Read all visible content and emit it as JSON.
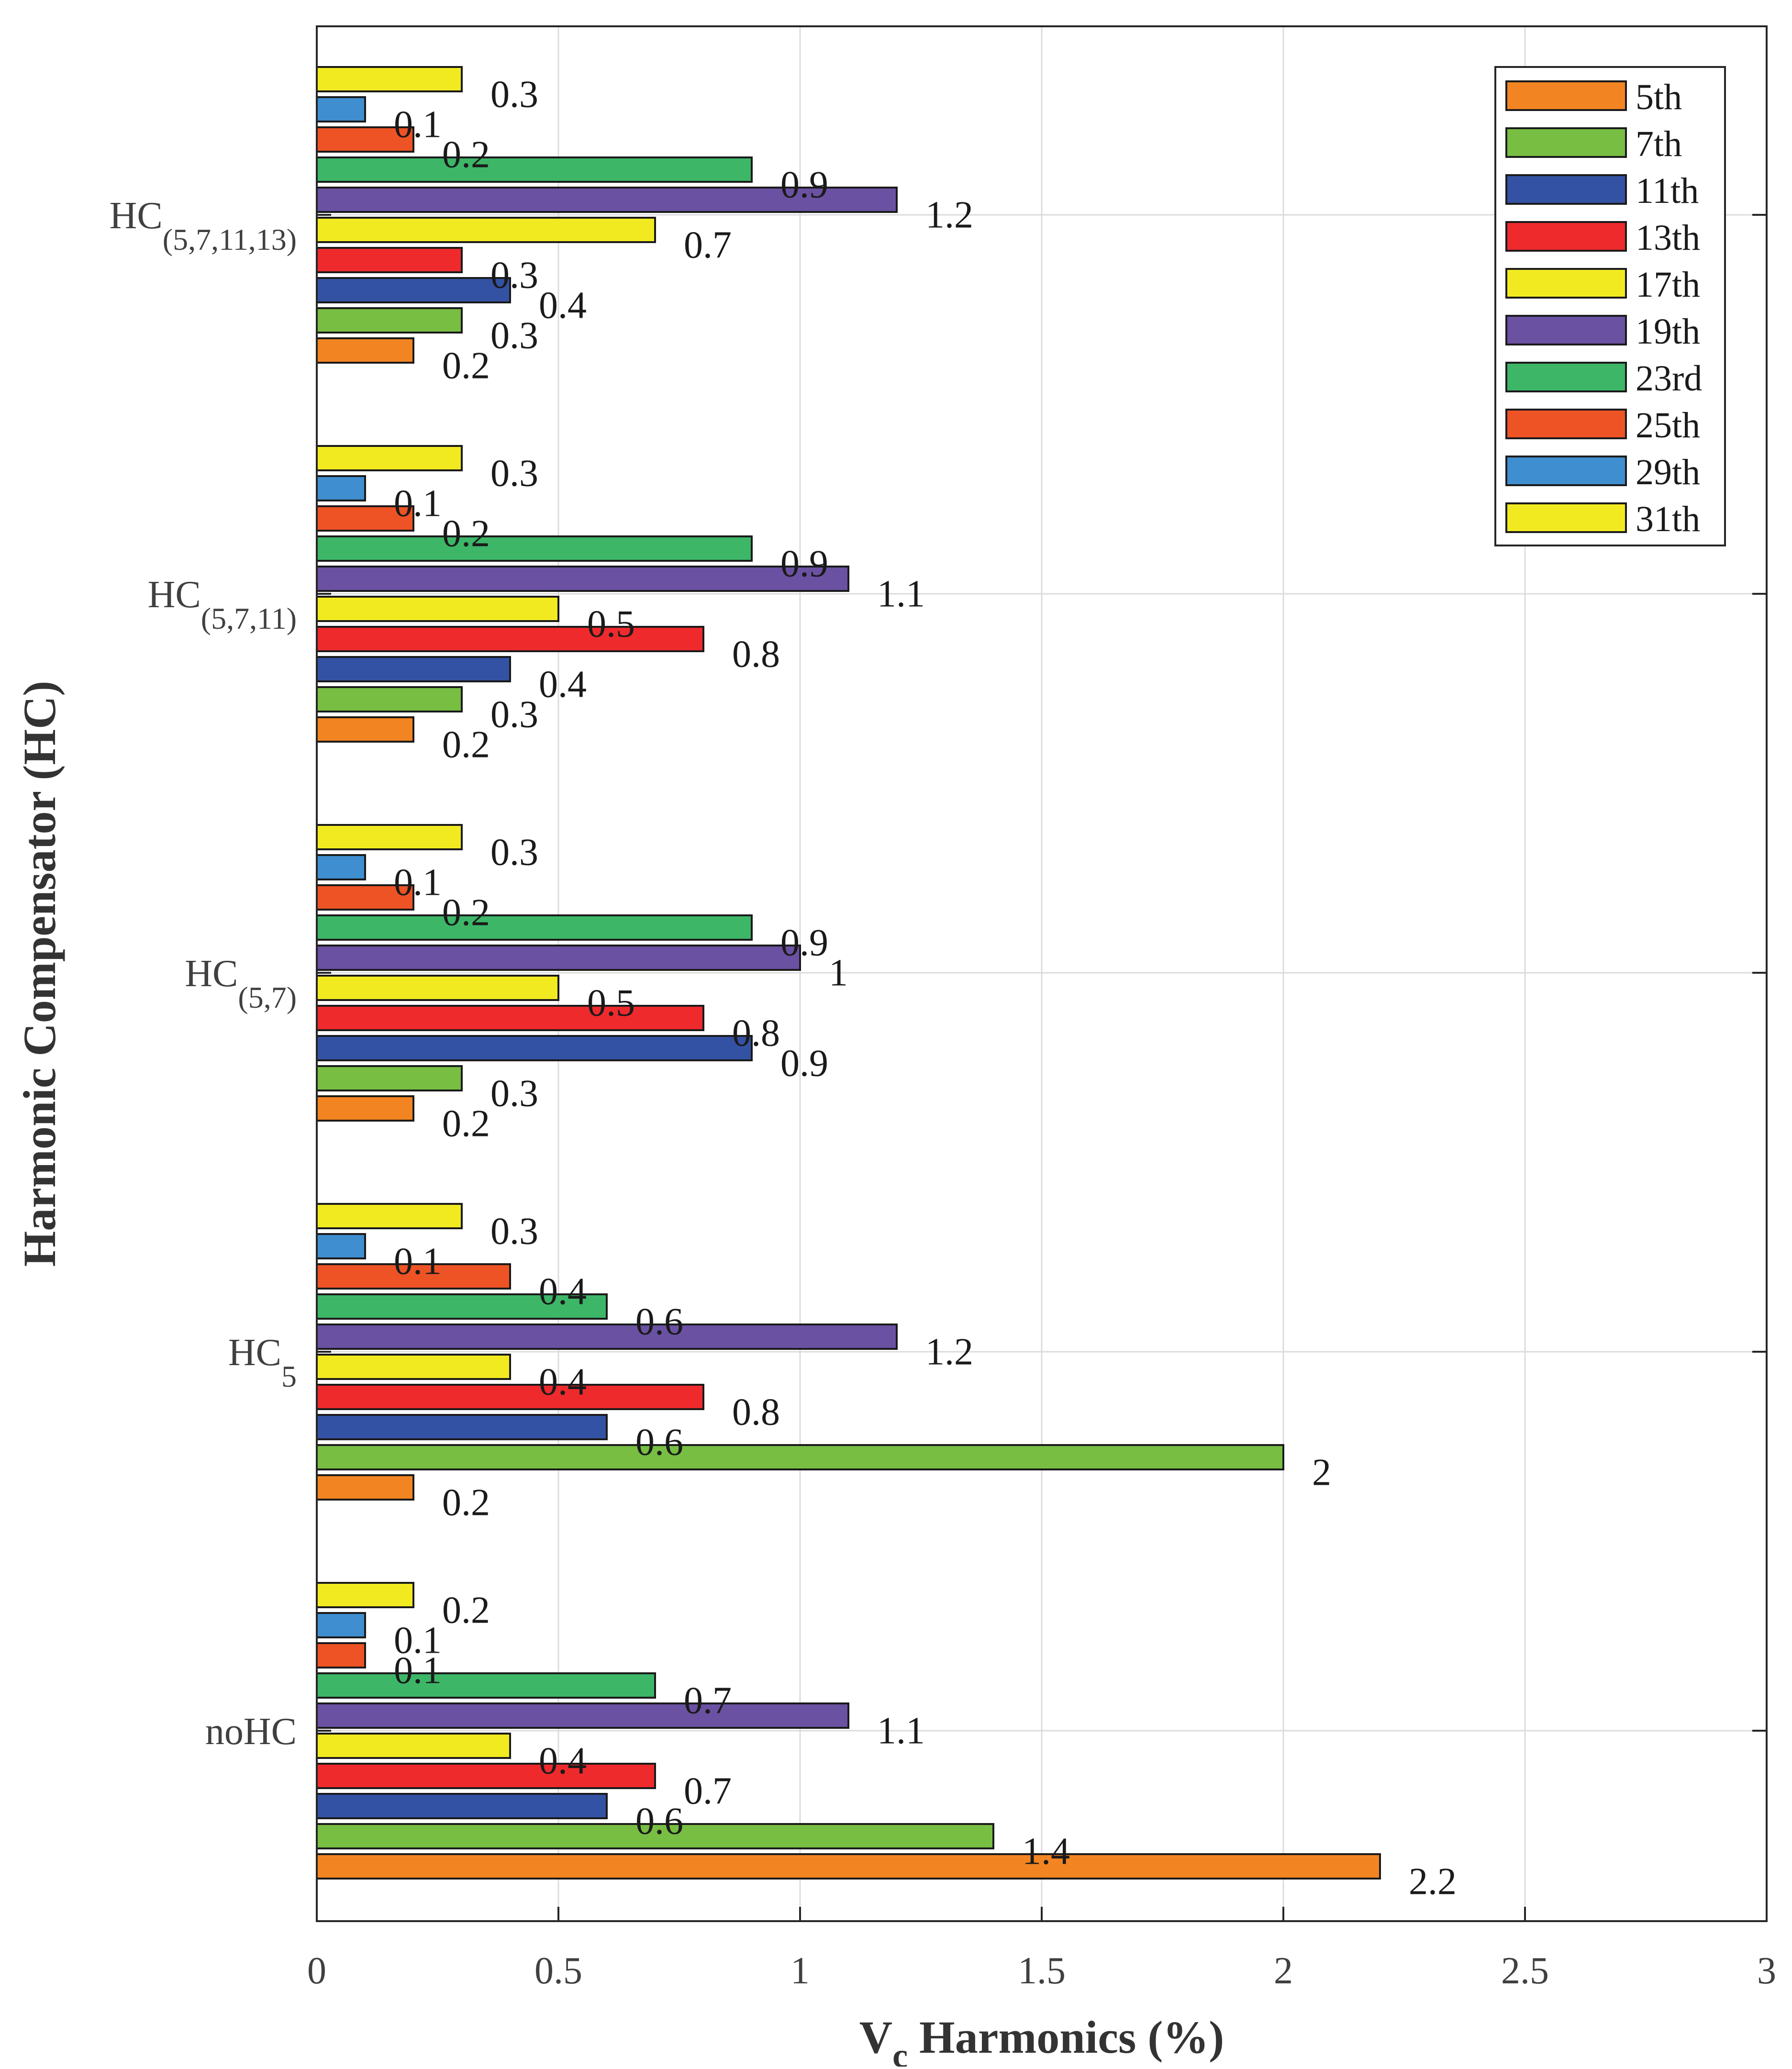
{
  "chart_data": {
    "type": "bar",
    "orientation": "horizontal",
    "title": "",
    "xlabel_main": "V",
    "xlabel_sub": "c",
    "xlabel_rest": " Harmonics (%)",
    "ylabel": "Harmonic Compensator (HC)",
    "xlim": [
      0,
      3
    ],
    "xticks": [
      "0",
      "0.5",
      "1",
      "1.5",
      "2",
      "2.5",
      "3"
    ],
    "grid": true,
    "legend_position": "top-right",
    "categories": [
      {
        "main": "noHC",
        "sub": ""
      },
      {
        "main": "HC",
        "sub": "5"
      },
      {
        "main": "HC",
        "sub": "(5,7)"
      },
      {
        "main": "HC",
        "sub": "(5,7,11)"
      },
      {
        "main": "HC",
        "sub": "(5,7,11,13)"
      }
    ],
    "series": [
      {
        "name": "5th",
        "color": "#F28522",
        "values": [
          2.2,
          0.2,
          0.2,
          0.2,
          0.2
        ],
        "labels": [
          "2.2",
          "0.2",
          "0.2",
          "0.2",
          "0.2"
        ]
      },
      {
        "name": "7th",
        "color": "#77BE43",
        "values": [
          1.4,
          2.0,
          0.3,
          0.3,
          0.3
        ],
        "labels": [
          "1.4",
          "2",
          "0.3",
          "0.3",
          "0.3"
        ]
      },
      {
        "name": "11th",
        "color": "#3452A4",
        "values": [
          0.6,
          0.6,
          0.9,
          0.4,
          0.4
        ],
        "labels": [
          "0.6",
          "0.6",
          "0.9",
          "0.4",
          "0.4"
        ]
      },
      {
        "name": "13th",
        "color": "#EE2A2D",
        "values": [
          0.7,
          0.8,
          0.8,
          0.8,
          0.3
        ],
        "labels": [
          "0.7",
          "0.8",
          "0.8",
          "0.8",
          "0.3"
        ]
      },
      {
        "name": "17th",
        "color": "#F2EA21",
        "values": [
          0.4,
          0.4,
          0.5,
          0.5,
          0.7
        ],
        "labels": [
          "0.4",
          "0.4",
          "0.5",
          "0.5",
          "0.7"
        ]
      },
      {
        "name": "19th",
        "color": "#6A51A2",
        "values": [
          1.1,
          1.2,
          1.0,
          1.1,
          1.2
        ],
        "labels": [
          "1.1",
          "1.2",
          "1",
          "1.1",
          "1.2"
        ]
      },
      {
        "name": "23rd",
        "color": "#3DB668",
        "values": [
          0.7,
          0.6,
          0.9,
          0.9,
          0.9
        ],
        "labels": [
          "0.7",
          "0.6",
          "0.9",
          "0.9",
          "0.9"
        ]
      },
      {
        "name": "25th",
        "color": "#EE5325",
        "values": [
          0.1,
          0.4,
          0.2,
          0.2,
          0.2
        ],
        "labels": [
          "0.1",
          "0.4",
          "0.2",
          "0.2",
          "0.2"
        ]
      },
      {
        "name": "29th",
        "color": "#3F8ECF",
        "values": [
          0.1,
          0.1,
          0.1,
          0.1,
          0.1
        ],
        "labels": [
          "0.1",
          "0.1",
          "0.1",
          "0.1",
          "0.1"
        ]
      },
      {
        "name": "31th",
        "color": "#F2EA21",
        "values": [
          0.2,
          0.3,
          0.3,
          0.3,
          0.3
        ],
        "labels": [
          "0.2",
          "0.3",
          "0.3",
          "0.3",
          "0.3"
        ]
      }
    ]
  }
}
